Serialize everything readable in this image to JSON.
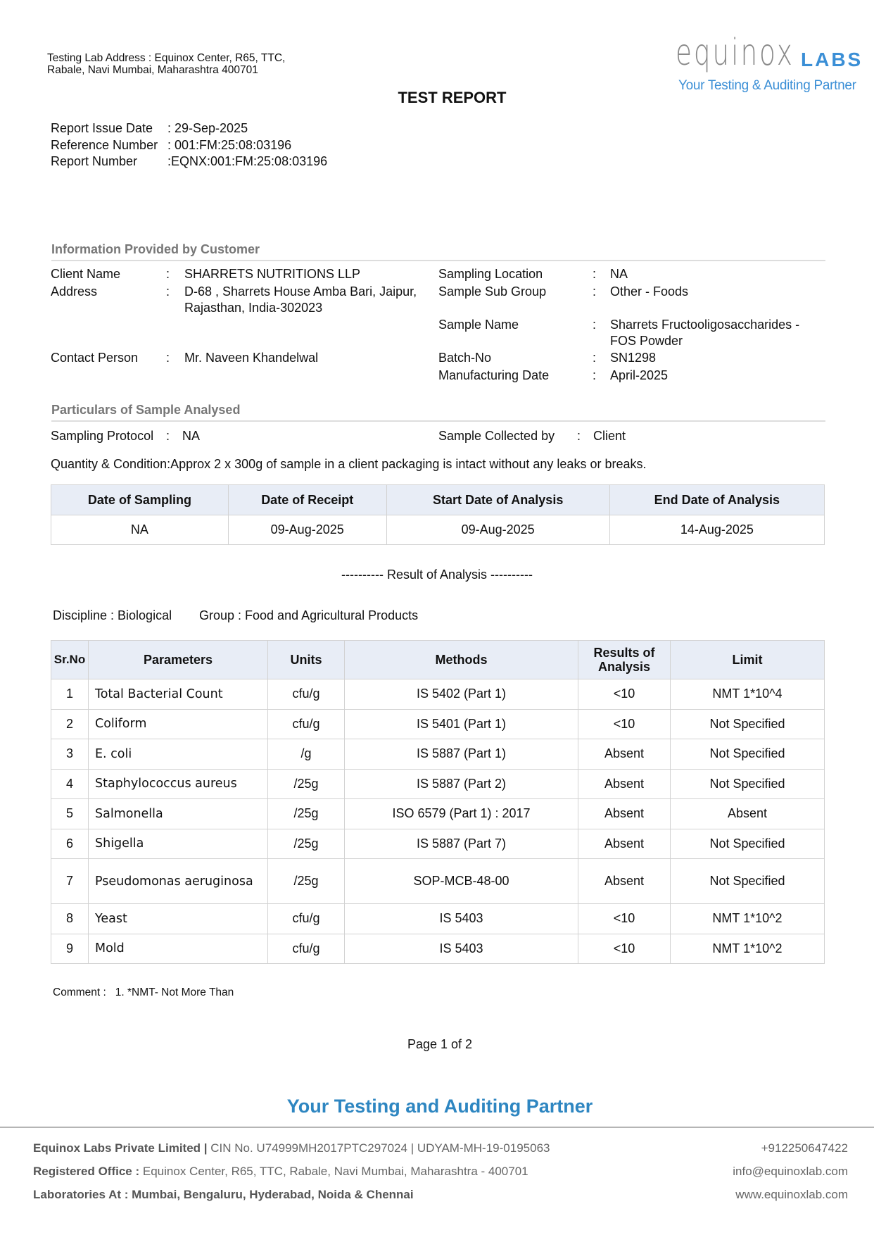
{
  "header": {
    "lab_address": "Testing Lab Address : Equinox Center, R65, TTC, Rabale, Navi Mumbai, Maharashtra 400701",
    "logo_word": "equinox",
    "logo_labs": "LABS",
    "logo_tagline": "Your Testing & Auditing Partner",
    "title": "TEST REPORT"
  },
  "report_info": [
    {
      "label": "Report Issue Date",
      "value": ": 29-Sep-2025"
    },
    {
      "label": "Reference Number",
      "value": ": 001:FM:25:08:03196"
    },
    {
      "label": "Report Number",
      "value": ":EQNX:001:FM:25:08:03196"
    }
  ],
  "customer": {
    "heading": "Information Provided by Customer",
    "left": [
      {
        "label": "Client Name",
        "value": "SHARRETS NUTRITIONS LLP"
      },
      {
        "label": "Address",
        "value": "D-68 , Sharrets House Amba Bari, Jaipur, Rajasthan, India-302023"
      },
      {
        "label": "Contact Person",
        "value": "Mr. Naveen Khandelwal"
      }
    ],
    "right": [
      {
        "label": "Sampling Location",
        "value": "NA"
      },
      {
        "label": "Sample Sub Group",
        "value": "Other - Foods"
      },
      {
        "label": "Sample Name",
        "value": "Sharrets Fructooligosaccharides - FOS Powder"
      },
      {
        "label": "Batch-No",
        "value": "SN1298"
      },
      {
        "label": "Manufacturing Date",
        "value": "April-2025"
      }
    ]
  },
  "particulars": {
    "heading": "Particulars of Sample Analysed",
    "protocol_label": "Sampling Protocol",
    "protocol_value": "NA",
    "collected_label": "Sample Collected by",
    "collected_value": "Client",
    "quantity_label": "Quantity & Condition",
    "quantity_value": "Approx 2 x 300g of sample in a client packaging is intact without any leaks or breaks."
  },
  "dates_table": {
    "headers": [
      "Date of Sampling",
      "Date of Receipt",
      "Start Date of Analysis",
      "End Date of Analysis"
    ],
    "values": [
      "NA",
      "09-Aug-2025",
      "09-Aug-2025",
      "14-Aug-2025"
    ]
  },
  "result_heading": "----------  Result of Analysis  ----------",
  "discipline": "Discipline : Biological",
  "group": "Group : Food and Agricultural Products",
  "results": {
    "headers": [
      "Sr.No",
      "Parameters",
      "Units",
      "Methods",
      "Results of Analysis",
      "Limit"
    ],
    "rows": [
      [
        "1",
        "Total Bacterial Count",
        "cfu/g",
        "IS 5402 (Part 1)",
        "<10",
        "NMT 1*10^4"
      ],
      [
        "2",
        "Coliform",
        "cfu/g",
        "IS 5401 (Part 1)",
        "<10",
        "Not Specified"
      ],
      [
        "3",
        "E. coli",
        "/g",
        "IS 5887 (Part 1)",
        "Absent",
        "Not Specified"
      ],
      [
        "4",
        "Staphylococcus aureus",
        "/25g",
        "IS 5887 (Part 2)",
        "Absent",
        "Not Specified"
      ],
      [
        "5",
        "Salmonella",
        "/25g",
        "ISO 6579 (Part 1) : 2017",
        "Absent",
        "Absent"
      ],
      [
        "6",
        "Shigella",
        "/25g",
        "IS 5887 (Part 7)",
        "Absent",
        "Not Specified"
      ],
      [
        "7",
        "Pseudomonas aeruginosa",
        "/25g",
        "SOP-MCB-48-00",
        "Absent",
        "Not Specified"
      ],
      [
        "8",
        "Yeast",
        "cfu/g",
        "IS 5403",
        "<10",
        "NMT 1*10^2"
      ],
      [
        "9",
        "Mold",
        "cfu/g",
        "IS 5403",
        "<10",
        "NMT 1*10^2"
      ]
    ]
  },
  "comment_label": "Comment :",
  "comment": "1. *NMT- Not More Than",
  "page": "Page 1 of 2",
  "tagline": "Your Testing and Auditing Partner",
  "footer": {
    "company": "Equinox Labs Private Limited |",
    "cin": " CIN No. U74999MH2017PTC297024 | UDYAM-MH-19-0195063",
    "office_label": "Registered Office :",
    "office": " Equinox Center, R65, TTC, Rabale, Navi Mumbai, Maharashtra - 400701",
    "labs": "Laboratories At : Mumbai, Bengaluru, Hyderabad, Noida & Chennai",
    "phone": "+912250647422",
    "email": "info@equinoxlab.com",
    "web": "www.equinoxlab.com"
  },
  "colors": {
    "brand_blue": "#2e86c1",
    "header_bg": "#e8edf6"
  }
}
